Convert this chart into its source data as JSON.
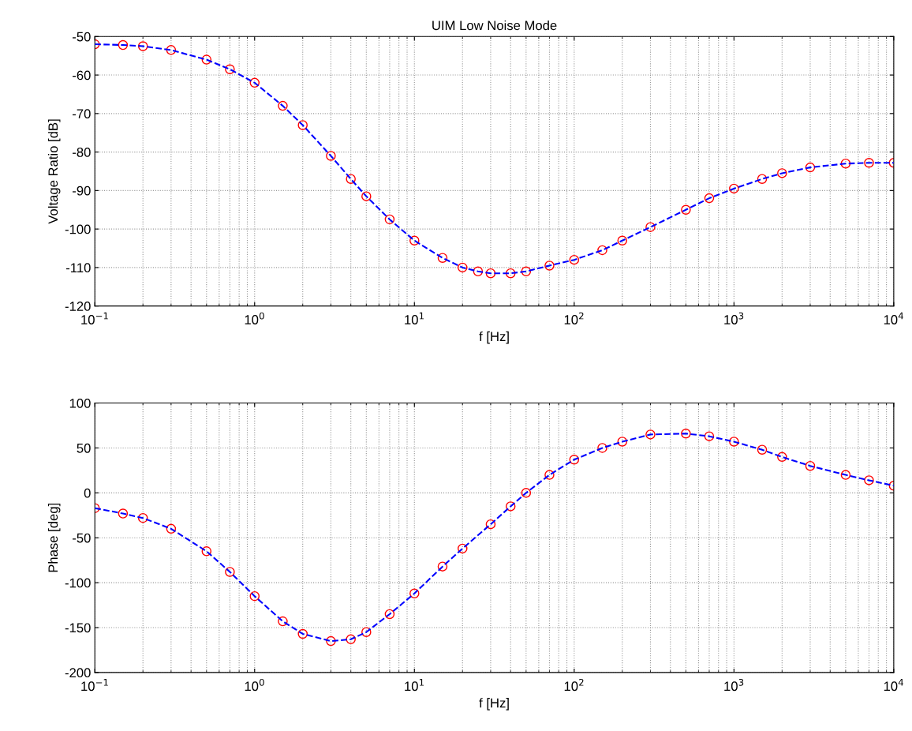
{
  "chart_data": [
    {
      "type": "line",
      "title": "UIM Low Noise Mode",
      "xlabel": "f [Hz]",
      "ylabel": "Voltage Ratio [dB]",
      "log": "x",
      "grid": true,
      "x": [
        0.1,
        0.15,
        0.2,
        0.3,
        0.5,
        0.7,
        1,
        1.5,
        2,
        3,
        4,
        5,
        7,
        10,
        15,
        20,
        25,
        30,
        40,
        50,
        70,
        100,
        150,
        200,
        300,
        500,
        700,
        1000,
        1500,
        2000,
        3000,
        5000,
        7000,
        10000
      ],
      "xlim": [
        0.1,
        10000
      ],
      "xticks": [
        {
          "value": 0.1,
          "label": "10$^{−1}$"
        },
        {
          "value": 1,
          "label": "10$^{0}$"
        },
        {
          "value": 10,
          "label": "10$^{1}$"
        },
        {
          "value": 100,
          "label": "10$^{2}$"
        },
        {
          "value": 1000,
          "label": "10$^{3}$"
        },
        {
          "value": 10000,
          "label": "10$^{4}$"
        }
      ],
      "ylim": [
        -120,
        -50
      ],
      "yticks": [
        -120,
        -110,
        -100,
        -90,
        -80,
        -70,
        -60,
        -50
      ],
      "series": [
        {
          "type": "scatter",
          "marker": "circle",
          "color": "#ff0000",
          "values": [
            -52,
            -52.2,
            -52.5,
            -53.5,
            -56,
            -58.5,
            -62,
            -68,
            -73,
            -81,
            -87,
            -91.5,
            -97.5,
            -103,
            -107.5,
            -110,
            -111,
            -111.5,
            -111.5,
            -111,
            -109.5,
            -108,
            -105.5,
            -103,
            -99.5,
            -95,
            -92,
            -89.5,
            -87,
            -85.5,
            -84,
            -83,
            -82.8,
            -82.8
          ]
        },
        {
          "line_style": "dashed",
          "color": "#0000ff",
          "values": [
            -52,
            -52.2,
            -52.5,
            -53.5,
            -56,
            -58.5,
            -62,
            -68,
            -73,
            -81,
            -87,
            -91.5,
            -97.5,
            -103,
            -107.5,
            -110,
            -111,
            -111.5,
            -111.5,
            -111,
            -109.5,
            -108,
            -105.5,
            -103,
            -99.5,
            -95,
            -92,
            -89.5,
            -87,
            -85.5,
            -84,
            -83,
            -82.8,
            -82.8
          ]
        }
      ]
    },
    {
      "type": "line",
      "xlabel": "f [Hz]",
      "ylabel": "Phase [deg]",
      "log": "x",
      "grid": true,
      "x": [
        0.1,
        0.15,
        0.2,
        0.3,
        0.5,
        0.7,
        1,
        1.5,
        2,
        3,
        4,
        5,
        7,
        10,
        15,
        20,
        30,
        40,
        50,
        70,
        100,
        150,
        200,
        300,
        500,
        700,
        1000,
        1500,
        2000,
        3000,
        5000,
        7000,
        10000
      ],
      "xlim": [
        0.1,
        10000
      ],
      "xticks": [
        {
          "value": 0.1,
          "label": "10$^{−1}$"
        },
        {
          "value": 1,
          "label": "10$^{0}$"
        },
        {
          "value": 10,
          "label": "10$^{1}$"
        },
        {
          "value": 100,
          "label": "10$^{2}$"
        },
        {
          "value": 1000,
          "label": "10$^{3}$"
        },
        {
          "value": 10000,
          "label": "10$^{4}$"
        }
      ],
      "ylim": [
        -200,
        100
      ],
      "yticks": [
        -200,
        -150,
        -100,
        -50,
        0,
        50,
        100
      ],
      "series": [
        {
          "type": "scatter",
          "marker": "circle",
          "color": "#ff0000",
          "values": [
            -17,
            -23,
            -28,
            -40,
            -65,
            -88,
            -115,
            -143,
            -157,
            -165,
            -163,
            -155,
            -135,
            -112,
            -82,
            -62,
            -35,
            -15,
            0,
            20,
            37,
            50,
            57,
            65,
            66,
            63,
            57,
            48,
            40,
            30,
            20,
            14,
            8
          ]
        },
        {
          "line_style": "dashed",
          "color": "#0000ff",
          "values": [
            -17,
            -23,
            -28,
            -40,
            -65,
            -88,
            -115,
            -143,
            -157,
            -165,
            -163,
            -155,
            -135,
            -112,
            -82,
            -62,
            -35,
            -15,
            0,
            20,
            37,
            50,
            57,
            65,
            66,
            63,
            57,
            48,
            40,
            30,
            20,
            14,
            8
          ]
        }
      ]
    }
  ]
}
